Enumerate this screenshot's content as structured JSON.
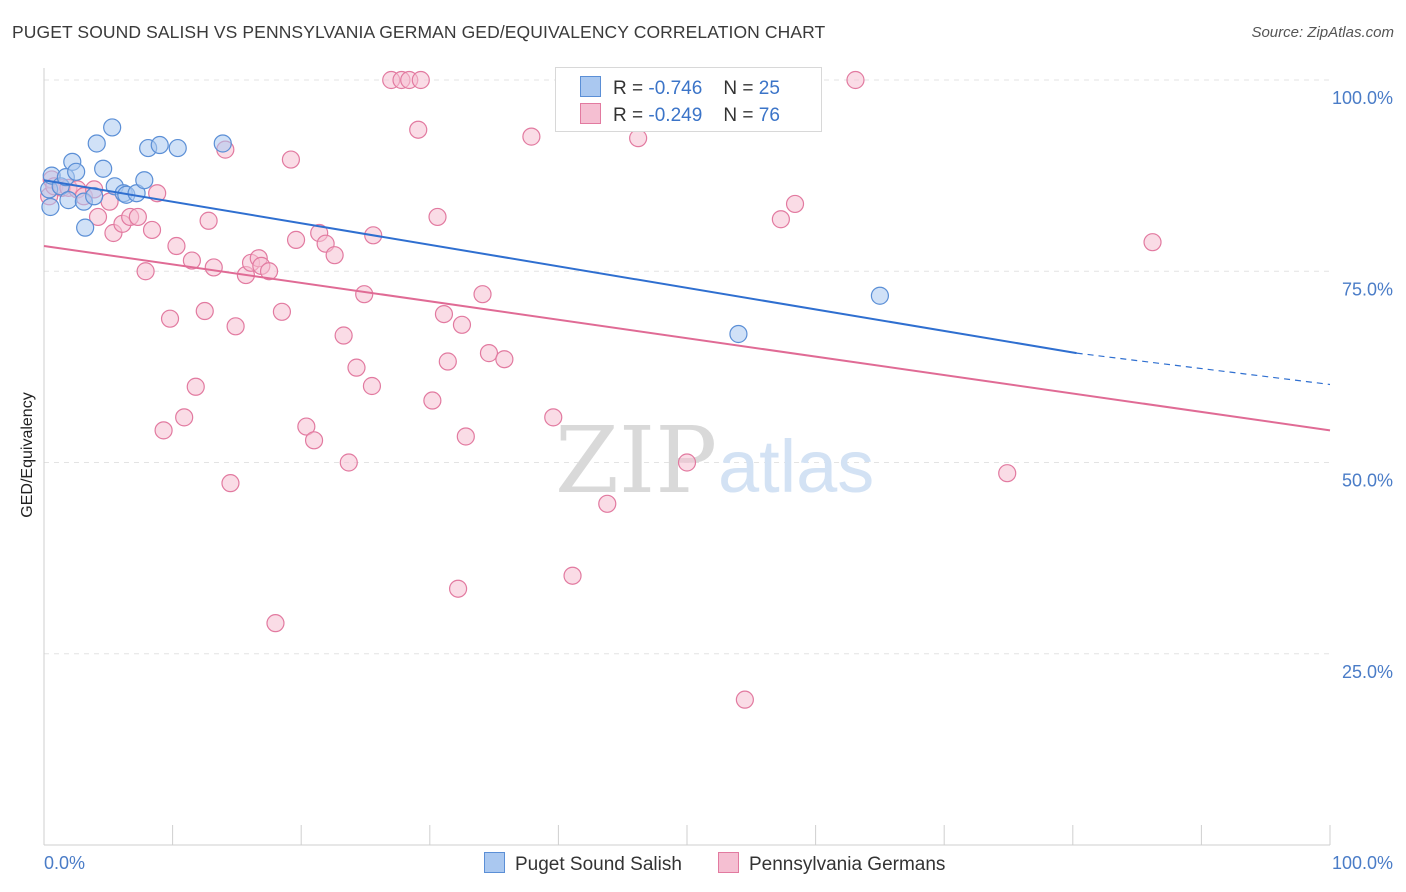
{
  "title": "PUGET SOUND SALISH VS PENNSYLVANIA GERMAN GED/EQUIVALENCY CORRELATION CHART",
  "source": "Source: ZipAtlas.com",
  "legend": {
    "r_label": "R =",
    "n_label": "N =",
    "rows": [
      {
        "r": "-0.746",
        "n": "25"
      },
      {
        "r": "-0.249",
        "n": "76"
      }
    ]
  },
  "colors": {
    "blue_fill": "#aac8f0",
    "blue_stroke": "#5b8fd6",
    "blue_line": "#2f6fd0",
    "pink_fill": "#f5bfd2",
    "pink_stroke": "#e27aa0",
    "pink_line": "#e06b95",
    "tick_text": "#4a7cc7"
  },
  "chart_data": {
    "type": "scatter",
    "title": "PUGET SOUND SALISH VS PENNSYLVANIA GERMAN GED/EQUIVALENCY CORRELATION CHART",
    "xlabel": "",
    "ylabel": "GED/Equivalency",
    "xlim": [
      0,
      100
    ],
    "ylim": [
      0,
      100
    ],
    "x_tick_labels": [
      "0.0%",
      "100.0%"
    ],
    "y_tick_labels": [
      "100.0%",
      "75.0%",
      "50.0%",
      "25.0%"
    ],
    "y_ticks": [
      100,
      75,
      50,
      25
    ],
    "grid": true,
    "legend_position": "top-center",
    "series": [
      {
        "name": "Puget Sound Salish",
        "r": -0.746,
        "n": 25,
        "trend": {
          "x0": 0,
          "y0": 86.9,
          "x1": 80.3,
          "y1": 64.3,
          "dash_to_x": 100,
          "dash_to_y": 60.2
        },
        "points": [
          [
            0.4,
            85.7
          ],
          [
            0.5,
            83.4
          ],
          [
            0.6,
            87.5
          ],
          [
            1.3,
            86.1
          ],
          [
            1.7,
            87.3
          ],
          [
            1.9,
            84.3
          ],
          [
            2.2,
            89.3
          ],
          [
            2.5,
            88.0
          ],
          [
            3.1,
            84.1
          ],
          [
            3.2,
            80.7
          ],
          [
            3.9,
            84.8
          ],
          [
            4.1,
            91.7
          ],
          [
            4.6,
            88.4
          ],
          [
            5.3,
            93.8
          ],
          [
            5.5,
            86.1
          ],
          [
            6.2,
            85.2
          ],
          [
            6.4,
            85.0
          ],
          [
            7.2,
            85.2
          ],
          [
            7.8,
            86.9
          ],
          [
            8.1,
            91.1
          ],
          [
            9.0,
            91.5
          ],
          [
            10.4,
            91.1
          ],
          [
            13.9,
            91.7
          ],
          [
            54.0,
            66.8
          ],
          [
            65.0,
            71.8
          ]
        ]
      },
      {
        "name": "Pennsylvania Germans",
        "r": -0.249,
        "n": 76,
        "trend": {
          "x0": 0,
          "y0": 78.3,
          "x1": 100,
          "y1": 54.2
        },
        "points": [
          [
            0.4,
            84.8
          ],
          [
            0.6,
            87.0
          ],
          [
            0.8,
            86.1
          ],
          [
            1.4,
            85.9
          ],
          [
            1.9,
            85.9
          ],
          [
            2.6,
            85.7
          ],
          [
            3.1,
            84.8
          ],
          [
            3.9,
            85.7
          ],
          [
            4.2,
            82.1
          ],
          [
            5.1,
            84.1
          ],
          [
            5.4,
            80.0
          ],
          [
            6.1,
            81.2
          ],
          [
            6.7,
            82.1
          ],
          [
            7.3,
            82.1
          ],
          [
            7.9,
            75.0
          ],
          [
            8.4,
            80.4
          ],
          [
            8.8,
            85.2
          ],
          [
            9.3,
            54.2
          ],
          [
            9.8,
            68.8
          ],
          [
            10.3,
            78.3
          ],
          [
            10.9,
            55.9
          ],
          [
            11.5,
            76.4
          ],
          [
            11.8,
            59.9
          ],
          [
            12.5,
            69.8
          ],
          [
            12.8,
            81.6
          ],
          [
            13.2,
            75.5
          ],
          [
            14.1,
            90.9
          ],
          [
            14.5,
            47.3
          ],
          [
            14.9,
            67.8
          ],
          [
            15.7,
            74.5
          ],
          [
            16.1,
            76.1
          ],
          [
            16.7,
            76.7
          ],
          [
            16.9,
            75.7
          ],
          [
            17.5,
            75.0
          ],
          [
            18.0,
            29.0
          ],
          [
            18.5,
            69.7
          ],
          [
            19.2,
            89.6
          ],
          [
            19.6,
            79.1
          ],
          [
            20.4,
            54.7
          ],
          [
            21.0,
            52.9
          ],
          [
            21.4,
            80.0
          ],
          [
            21.9,
            78.6
          ],
          [
            22.6,
            77.1
          ],
          [
            23.3,
            66.6
          ],
          [
            23.7,
            50.0
          ],
          [
            24.3,
            62.4
          ],
          [
            24.9,
            72.0
          ],
          [
            25.5,
            60.0
          ],
          [
            25.6,
            79.7
          ],
          [
            27.0,
            100
          ],
          [
            27.8,
            100
          ],
          [
            28.4,
            100
          ],
          [
            29.1,
            93.5
          ],
          [
            29.3,
            100
          ],
          [
            30.2,
            58.1
          ],
          [
            30.6,
            82.1
          ],
          [
            31.1,
            69.4
          ],
          [
            31.4,
            63.2
          ],
          [
            32.2,
            33.5
          ],
          [
            32.5,
            68.0
          ],
          [
            32.8,
            53.4
          ],
          [
            34.1,
            72.0
          ],
          [
            34.6,
            64.3
          ],
          [
            35.8,
            63.5
          ],
          [
            37.9,
            92.6
          ],
          [
            39.6,
            55.9
          ],
          [
            41.1,
            35.2
          ],
          [
            43.8,
            44.6
          ],
          [
            46.2,
            92.4
          ],
          [
            50.0,
            50.0
          ],
          [
            54.5,
            19.0
          ],
          [
            57.3,
            81.8
          ],
          [
            58.4,
            83.8
          ],
          [
            63.1,
            100
          ],
          [
            74.9,
            48.6
          ],
          [
            86.2,
            78.8
          ]
        ]
      }
    ]
  },
  "bottom_legend": [
    "Puget Sound Salish",
    "Pennsylvania Germans"
  ],
  "watermark": {
    "zip": "ZIP",
    "atlas": "atlas"
  }
}
